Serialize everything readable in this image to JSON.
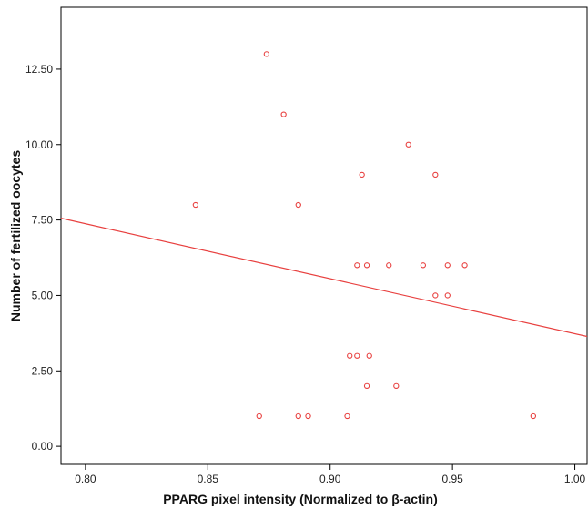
{
  "chart_data": {
    "type": "scatter",
    "xlabel": "PPARG pixel intensity (Normalized to β-actin)",
    "ylabel": "Number of fertilized oocytes",
    "xlim": [
      0.79,
      1.005
    ],
    "ylim": [
      -0.6,
      14.55
    ],
    "x_ticks": [
      0.8,
      0.85,
      0.9,
      0.95,
      1.0
    ],
    "x_tick_labels": [
      "0.80",
      "0.85",
      "0.90",
      "0.95",
      "1.00"
    ],
    "y_ticks": [
      0,
      2.5,
      5,
      7.5,
      10,
      12.5
    ],
    "y_tick_labels": [
      "0.00",
      "2.50",
      "5.00",
      "7.50",
      "10.00",
      "12.50"
    ],
    "points": [
      {
        "x": 0.845,
        "y": 8
      },
      {
        "x": 0.871,
        "y": 1
      },
      {
        "x": 0.874,
        "y": 13
      },
      {
        "x": 0.881,
        "y": 11
      },
      {
        "x": 0.887,
        "y": 8
      },
      {
        "x": 0.887,
        "y": 1
      },
      {
        "x": 0.891,
        "y": 1
      },
      {
        "x": 0.907,
        "y": 1
      },
      {
        "x": 0.908,
        "y": 3
      },
      {
        "x": 0.911,
        "y": 3
      },
      {
        "x": 0.911,
        "y": 6
      },
      {
        "x": 0.913,
        "y": 9
      },
      {
        "x": 0.915,
        "y": 6
      },
      {
        "x": 0.915,
        "y": 2
      },
      {
        "x": 0.916,
        "y": 3
      },
      {
        "x": 0.924,
        "y": 6
      },
      {
        "x": 0.927,
        "y": 2
      },
      {
        "x": 0.932,
        "y": 10
      },
      {
        "x": 0.938,
        "y": 6
      },
      {
        "x": 0.943,
        "y": 9
      },
      {
        "x": 0.943,
        "y": 5
      },
      {
        "x": 0.948,
        "y": 6
      },
      {
        "x": 0.948,
        "y": 5
      },
      {
        "x": 0.955,
        "y": 6
      },
      {
        "x": 0.983,
        "y": 1
      }
    ],
    "fit_line": {
      "x": [
        0.79,
        1.005
      ],
      "y": [
        7.56,
        3.64
      ]
    },
    "grid": false,
    "legend": "none",
    "colors": {
      "points": "#e8403f",
      "fit_line": "#e8403f",
      "axes": "#000000"
    }
  }
}
